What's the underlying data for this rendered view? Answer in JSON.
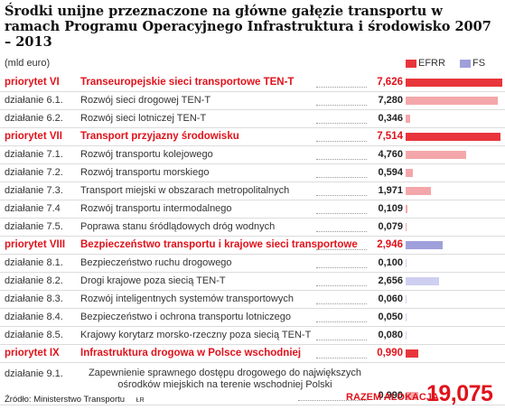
{
  "header": {
    "title": "Środki unijne przeznaczone na główne gałęzie transportu w ramach Programu Operacyjnego Infrastruktura i środowisko 2007 – 2013",
    "unit": "(mld euro)"
  },
  "legend": [
    {
      "label": "EFRR",
      "color": "#e8353b"
    },
    {
      "label": "FS",
      "color": "#9f9fdc"
    }
  ],
  "colors": {
    "efrr": "#e8353b",
    "efrr_light": "#f4a7aa",
    "fs": "#9f9fdc",
    "fs_light": "#cfcff1",
    "priority_text": "#e0121b"
  },
  "chart_data": {
    "type": "bar",
    "title": "Środki unijne przeznaczone na główne gałęzie transportu w ramach Programu Operacyjnego Infrastruktura i środowisko 2007 – 2013",
    "ylabel": "(mld euro)",
    "series_names": [
      "EFRR",
      "FS"
    ],
    "rows": [
      {
        "code": "priorytet VI",
        "label": "Transeuropejskie sieci transportowe TEN-T",
        "value": "7,626",
        "v": 7.626,
        "priority": true,
        "fund": "efrr"
      },
      {
        "code": "działanie 6.1.",
        "label": "Rozwój sieci drogowej TEN-T",
        "value": "7,280",
        "v": 7.28,
        "priority": false,
        "fund": "efrr"
      },
      {
        "code": "działanie 6.2.",
        "label": "Rozwój sieci lotniczej TEN-T",
        "value": "0,346",
        "v": 0.346,
        "priority": false,
        "fund": "efrr"
      },
      {
        "code": "priorytet VII",
        "label": "Transport przyjazny środowisku",
        "value": "7,514",
        "v": 7.514,
        "priority": true,
        "fund": "efrr"
      },
      {
        "code": "działanie 7.1.",
        "label": "Rozwój transportu kolejowego",
        "value": "4,760",
        "v": 4.76,
        "priority": false,
        "fund": "efrr"
      },
      {
        "code": "działanie 7.2.",
        "label": "Rozwój transportu morskiego",
        "value": "0,594",
        "v": 0.594,
        "priority": false,
        "fund": "efrr"
      },
      {
        "code": "działanie 7.3.",
        "label": "Transport miejski w obszarach metropolitalnych",
        "value": "1,971",
        "v": 1.971,
        "priority": false,
        "fund": "efrr"
      },
      {
        "code": "działanie 7.4",
        "label": "Rozwój transportu intermodalnego",
        "value": "0,109",
        "v": 0.109,
        "priority": false,
        "fund": "efrr"
      },
      {
        "code": "działanie 7.5.",
        "label": "Poprawa stanu śródlądowych dróg wodnych",
        "value": "0,079",
        "v": 0.079,
        "priority": false,
        "fund": "efrr"
      },
      {
        "code": "priorytet VIII",
        "label": "Bezpieczeństwo transportu i krajowe sieci transportowe",
        "value": "2,946",
        "v": 2.946,
        "priority": true,
        "fund": "fs"
      },
      {
        "code": "działanie 8.1.",
        "label": "Bezpieczeństwo ruchu drogowego",
        "value": "0,100",
        "v": 0.1,
        "priority": false,
        "fund": "fs"
      },
      {
        "code": "działanie 8.2.",
        "label": "Drogi krajowe poza siecią TEN-T",
        "value": "2,656",
        "v": 2.656,
        "priority": false,
        "fund": "fs"
      },
      {
        "code": "działanie 8.3.",
        "label": "Rozwój inteligentnych systemów transportowych",
        "value": "0,060",
        "v": 0.06,
        "priority": false,
        "fund": "fs"
      },
      {
        "code": "działanie 8.4.",
        "label": "Bezpieczeństwo i ochrona transportu lotniczego",
        "value": "0,050",
        "v": 0.05,
        "priority": false,
        "fund": "fs"
      },
      {
        "code": "działanie 8.5.",
        "label": "Krajowy korytarz morsko-rzeczny poza siecią TEN-T",
        "value": "0,080",
        "v": 0.08,
        "priority": false,
        "fund": "fs"
      },
      {
        "code": "priorytet IX",
        "label": "Infrastruktura drogowa w Polsce wschodniej",
        "value": "0,990",
        "v": 0.99,
        "priority": true,
        "fund": "efrr"
      },
      {
        "code": "działanie 9.1.",
        "label": "Zapewnienie sprawnego dostępu drogowego do największych ośrodków miejskich na terenie wschodniej Polski",
        "value": "0,990",
        "v": 0.99,
        "priority": false,
        "fund": "efrr"
      }
    ]
  },
  "footer": {
    "source": "Źródło: Ministerstwo Transportu",
    "initials": "ŁR",
    "total_label": "RAZEM ALOKACJA",
    "total_value": "19,075"
  }
}
